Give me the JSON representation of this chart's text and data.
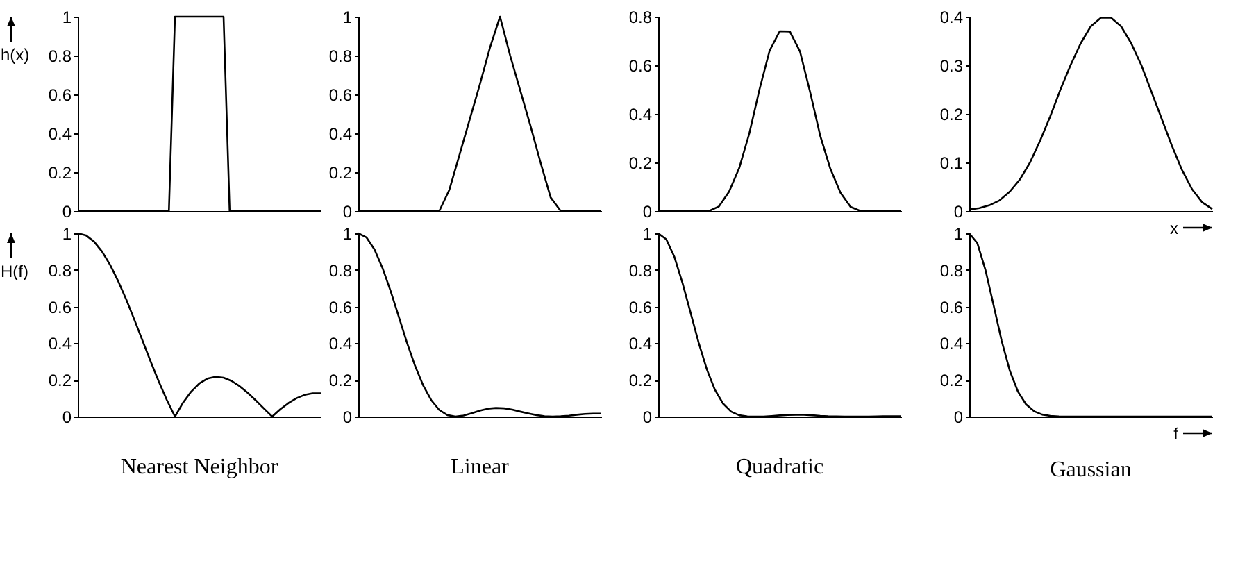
{
  "chart_data": [
    {
      "type": "line",
      "ylabel": "h(x)",
      "color": "#000000",
      "tick_labels": "y",
      "ylim": [
        0,
        1
      ],
      "yticks": [
        0,
        0.2,
        0.4,
        0.6,
        0.8,
        1
      ],
      "categories": [
        null,
        null,
        null,
        null,
        null,
        null,
        null,
        null,
        null,
        null,
        null,
        null,
        null,
        null,
        null,
        null,
        null,
        null,
        null,
        null,
        null,
        null,
        null,
        null,
        null,
        null,
        null,
        null,
        null,
        null,
        null,
        null,
        null,
        null,
        null,
        null,
        null,
        null,
        null,
        null,
        null
      ],
      "values": [
        0,
        0,
        0,
        0,
        0,
        0,
        0,
        0,
        0,
        0,
        0,
        0,
        0,
        0,
        0,
        0,
        1,
        1,
        1,
        1,
        1,
        1,
        1,
        1,
        1,
        0,
        0,
        0,
        0,
        0,
        0,
        0,
        0,
        0,
        0,
        0,
        0,
        0,
        0,
        0,
        0
      ]
    },
    {
      "type": "line",
      "color": "#000000",
      "tick_labels": "y",
      "ylim": [
        0,
        1
      ],
      "yticks": [
        0,
        0.2,
        0.4,
        0.6,
        0.8,
        1
      ],
      "categories": [
        null,
        null,
        null,
        null,
        null,
        null,
        null,
        null,
        null,
        null,
        null,
        null,
        null,
        null,
        null,
        null,
        null,
        null,
        null,
        null,
        null,
        null,
        null,
        null,
        null
      ],
      "values": [
        0,
        0,
        0,
        0,
        0,
        0,
        0,
        0,
        0,
        0.11,
        0.29,
        0.47,
        0.65,
        0.84,
        1,
        0.8,
        0.62,
        0.44,
        0.25,
        0.07,
        0,
        0,
        0,
        0,
        0
      ]
    },
    {
      "type": "line",
      "color": "#000000",
      "tick_labels": "y",
      "ylim": [
        0,
        0.8
      ],
      "yticks": [
        0,
        0.2,
        0.4,
        0.6,
        0.8
      ],
      "categories": [
        null,
        null,
        null,
        null,
        null,
        null,
        null,
        null,
        null,
        null,
        null,
        null,
        null,
        null,
        null,
        null,
        null,
        null,
        null,
        null,
        null,
        null,
        null,
        null,
        null
      ],
      "values": [
        0,
        0,
        0,
        0,
        0,
        0,
        0.019,
        0.08,
        0.177,
        0.32,
        0.5,
        0.66,
        0.74,
        0.739,
        0.657,
        0.49,
        0.31,
        0.174,
        0.076,
        0.017,
        0,
        0,
        0,
        0,
        0
      ]
    },
    {
      "type": "line",
      "xlabel": "x",
      "color": "#000000",
      "tick_labels": "y",
      "ylim": [
        0,
        0.4
      ],
      "yticks": [
        0,
        0.1,
        0.2,
        0.3,
        0.4
      ],
      "categories": [
        null,
        null,
        null,
        null,
        null,
        null,
        null,
        null,
        null,
        null,
        null,
        null,
        null,
        null,
        null,
        null,
        null,
        null,
        null,
        null,
        null,
        null,
        null,
        null,
        null
      ],
      "values": [
        0.003,
        0.006,
        0.012,
        0.022,
        0.04,
        0.065,
        0.1,
        0.145,
        0.195,
        0.25,
        0.3,
        0.345,
        0.38,
        0.398,
        0.398,
        0.38,
        0.345,
        0.3,
        0.245,
        0.19,
        0.135,
        0.085,
        0.045,
        0.018,
        0.004
      ]
    },
    {
      "type": "line",
      "title": "Nearest Neighbor",
      "ylabel": "H(f)",
      "color": "#000000",
      "tick_labels": "y",
      "ylim": [
        0,
        1
      ],
      "yticks": [
        0,
        0.2,
        0.4,
        0.6,
        0.8,
        1
      ],
      "categories": [
        null,
        null,
        null,
        null,
        null,
        null,
        null,
        null,
        null,
        null,
        null,
        null,
        null,
        null,
        null,
        null,
        null,
        null,
        null,
        null,
        null,
        null,
        null,
        null,
        null,
        null,
        null,
        null,
        null,
        null,
        null
      ],
      "values": [
        1,
        0.989,
        0.955,
        0.9,
        0.827,
        0.738,
        0.637,
        0.527,
        0.414,
        0.3,
        0.191,
        0.09,
        0,
        0.076,
        0.136,
        0.18,
        0.207,
        0.217,
        0.212,
        0.194,
        0.165,
        0.129,
        0.087,
        0.043,
        0,
        0.04,
        0.073,
        0.1,
        0.118,
        0.127,
        0.127
      ]
    },
    {
      "type": "line",
      "title": "Linear",
      "color": "#000000",
      "tick_labels": "y",
      "ylim": [
        0,
        1
      ],
      "yticks": [
        0,
        0.2,
        0.4,
        0.6,
        0.8,
        1
      ],
      "categories": [
        null,
        null,
        null,
        null,
        null,
        null,
        null,
        null,
        null,
        null,
        null,
        null,
        null,
        null,
        null,
        null,
        null,
        null,
        null,
        null,
        null,
        null,
        null,
        null,
        null,
        null,
        null,
        null,
        null,
        null,
        null
      ],
      "values": [
        1,
        0.978,
        0.912,
        0.81,
        0.684,
        0.545,
        0.405,
        0.278,
        0.171,
        0.09,
        0.036,
        0.008,
        0,
        0.006,
        0.018,
        0.032,
        0.043,
        0.047,
        0.045,
        0.038,
        0.027,
        0.017,
        0.008,
        0.002,
        0,
        0.002,
        0.005,
        0.01,
        0.014,
        0.016,
        0.016
      ]
    },
    {
      "type": "line",
      "title": "Quadratic",
      "color": "#000000",
      "tick_labels": "y",
      "ylim": [
        0,
        1
      ],
      "yticks": [
        0,
        0.2,
        0.4,
        0.6,
        0.8,
        1
      ],
      "categories": [
        null,
        null,
        null,
        null,
        null,
        null,
        null,
        null,
        null,
        null,
        null,
        null,
        null,
        null,
        null,
        null,
        null,
        null,
        null,
        null,
        null,
        null,
        null,
        null,
        null,
        null,
        null,
        null,
        null,
        null,
        null
      ],
      "values": [
        1,
        0.967,
        0.871,
        0.729,
        0.566,
        0.402,
        0.258,
        0.146,
        0.071,
        0.027,
        0.007,
        0.001,
        0,
        0,
        0.003,
        0.006,
        0.009,
        0.01,
        0.01,
        0.007,
        0.004,
        0.002,
        0.001,
        0,
        0,
        0,
        0,
        0.001,
        0.002,
        0.002,
        0.002
      ]
    },
    {
      "type": "line",
      "title": "Gaussian",
      "xlabel": "f",
      "color": "#000000",
      "tick_labels": "y",
      "ylim": [
        0,
        1
      ],
      "yticks": [
        0,
        0.2,
        0.4,
        0.6,
        0.8,
        1
      ],
      "categories": [
        null,
        null,
        null,
        null,
        null,
        null,
        null,
        null,
        null,
        null,
        null,
        null,
        null,
        null,
        null,
        null,
        null,
        null,
        null,
        null,
        null,
        null,
        null,
        null,
        null,
        null,
        null,
        null,
        null,
        null,
        null
      ],
      "values": [
        1,
        0.946,
        0.8,
        0.608,
        0.413,
        0.251,
        0.137,
        0.067,
        0.029,
        0.011,
        0.004,
        0.001,
        0,
        0,
        0,
        0,
        0,
        0,
        0,
        0,
        0,
        0,
        0,
        0,
        0,
        0,
        0,
        0,
        0,
        0,
        0
      ]
    }
  ]
}
